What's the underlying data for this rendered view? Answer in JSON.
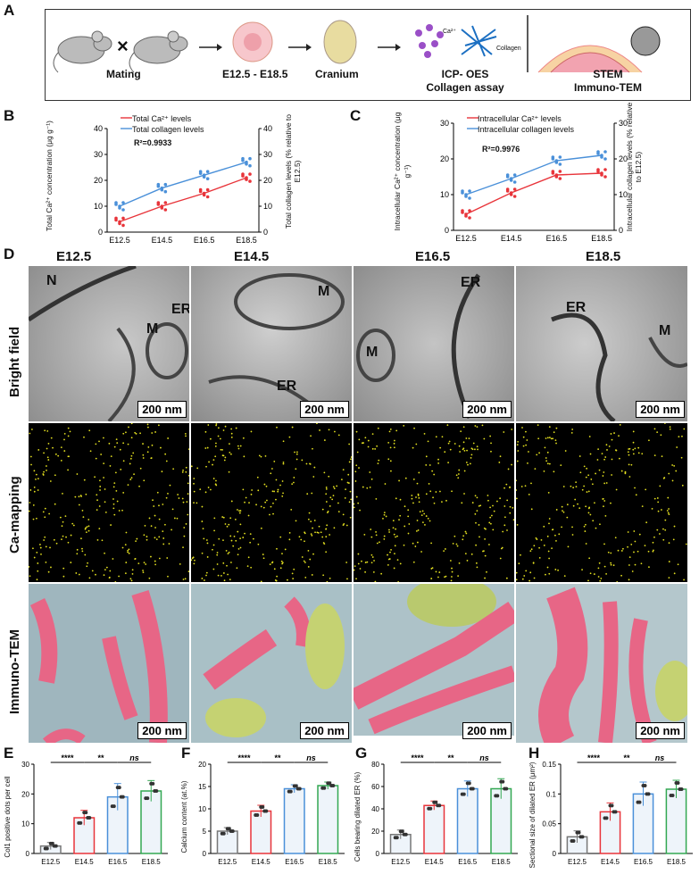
{
  "panels": {
    "A": "A",
    "B": "B",
    "C": "C",
    "D": "D",
    "E": "E",
    "F": "F",
    "G": "G",
    "H": "H"
  },
  "panelA": {
    "mating": "Mating",
    "cross": "×",
    "stage": "E12.5 - E18.5",
    "cranium": "Cranium",
    "ca_label": "Ca²⁺",
    "collagen_label": "Collagen",
    "assay1": "ICP- OES",
    "assay2": "Collagen assay",
    "img1": "STEM",
    "img2": "Immuno-TEM"
  },
  "panelB": {
    "legend_ca": "Total Ca²⁺ levels",
    "legend_col": "Total collagen levels",
    "r2": "R²=0.9933",
    "ylabel_left": "Total Ca²⁺ concentration (μg g⁻¹)",
    "ylabel_right": "Total collagen levels (% relative to E12.5)"
  },
  "panelC": {
    "legend_ca": "Intracellular Ca²⁺ levels",
    "legend_col": "Intracellular collagen levels",
    "r2": "R²=0.9976",
    "ylabel_left": "Intracellular Ca²⁺ concentration (μg g⁻¹)",
    "ylabel_right": "Intracellular collagen levels (% relative to E12.5)"
  },
  "panelD": {
    "columns": [
      "E12.5",
      "E14.5",
      "E16.5",
      "E18.5"
    ],
    "rows": [
      "Bright field",
      "Ca-mapping",
      "Immuno-TEM"
    ],
    "scalebar": "200 nm",
    "organelles": {
      "N": "N",
      "ER": "ER",
      "M": "M"
    }
  },
  "bar_ylabels": {
    "E": "Col1 positive dots per cell",
    "F": "Calcium content (at.%)",
    "G": "Cells bearing dilated ER (%)",
    "H": "Sectional size of dilated ER (μm²)"
  },
  "sig": {
    "s4": "****",
    "s2": "**",
    "ns": "ns"
  },
  "colors": {
    "red": "#e8343a",
    "blue": "#4a90d9",
    "series": [
      "#777777",
      "#e8343a",
      "#4a90d9",
      "#33a852"
    ]
  },
  "chart_data": [
    {
      "type": "line",
      "panel": "B",
      "x": [
        "E12.5",
        "E14.5",
        "E16.5",
        "E18.5"
      ],
      "series": [
        {
          "name": "Total Ca²⁺ levels",
          "values": [
            4,
            10,
            15,
            21
          ],
          "axis": "left"
        },
        {
          "name": "Total collagen levels",
          "values": [
            10,
            17,
            22,
            27
          ],
          "axis": "left"
        }
      ],
      "ylim_left": [
        0,
        40
      ],
      "yticks_left": [
        0,
        10,
        20,
        30,
        40
      ],
      "ylim_right": [
        0,
        40
      ],
      "yticks_right": [
        0,
        10,
        20,
        30,
        40
      ]
    },
    {
      "type": "line",
      "panel": "C",
      "x": [
        "E12.5",
        "E14.5",
        "E16.5",
        "E18.5"
      ],
      "series": [
        {
          "name": "Intracellular Ca²⁺ levels",
          "values": [
            4.5,
            10.5,
            15.5,
            16
          ],
          "axis": "left"
        },
        {
          "name": "Intracellular collagen levels",
          "values": [
            10,
            14.5,
            19.5,
            21
          ],
          "axis": "left"
        }
      ],
      "ylim_left": [
        0,
        30
      ],
      "yticks_left": [
        0,
        10,
        20,
        30
      ],
      "ylim_right": [
        0,
        30
      ],
      "yticks_right": [
        0,
        10,
        20,
        30
      ]
    },
    {
      "type": "bar",
      "panel": "E",
      "categories": [
        "E12.5",
        "E14.5",
        "E16.5",
        "E18.5"
      ],
      "values": [
        2.5,
        12,
        19,
        21
      ],
      "errors": [
        1.2,
        2.5,
        4.5,
        3.5
      ],
      "ylim": [
        0,
        30
      ],
      "yticks": [
        0,
        10,
        20,
        30
      ]
    },
    {
      "type": "bar",
      "panel": "F",
      "categories": [
        "E12.5",
        "E14.5",
        "E16.5",
        "E18.5"
      ],
      "values": [
        5,
        9.5,
        14.5,
        15.2
      ],
      "errors": [
        0.8,
        1.3,
        0.9,
        0.8
      ],
      "ylim": [
        0,
        20
      ],
      "yticks": [
        0,
        5,
        10,
        15,
        20
      ]
    },
    {
      "type": "bar",
      "panel": "G",
      "categories": [
        "E12.5",
        "E14.5",
        "E16.5",
        "E18.5"
      ],
      "values": [
        17,
        43,
        58,
        58
      ],
      "errors": [
        4,
        4,
        7,
        9
      ],
      "ylim": [
        0,
        80
      ],
      "yticks": [
        0,
        20,
        40,
        60,
        80
      ]
    },
    {
      "type": "bar",
      "panel": "H",
      "categories": [
        "E12.5",
        "E14.5",
        "E16.5",
        "E18.5"
      ],
      "values": [
        0.028,
        0.07,
        0.1,
        0.108
      ],
      "errors": [
        0.01,
        0.015,
        0.02,
        0.015
      ],
      "ylim": [
        0,
        0.15
      ],
      "yticks": [
        0.0,
        0.05,
        0.1,
        0.15
      ]
    }
  ]
}
